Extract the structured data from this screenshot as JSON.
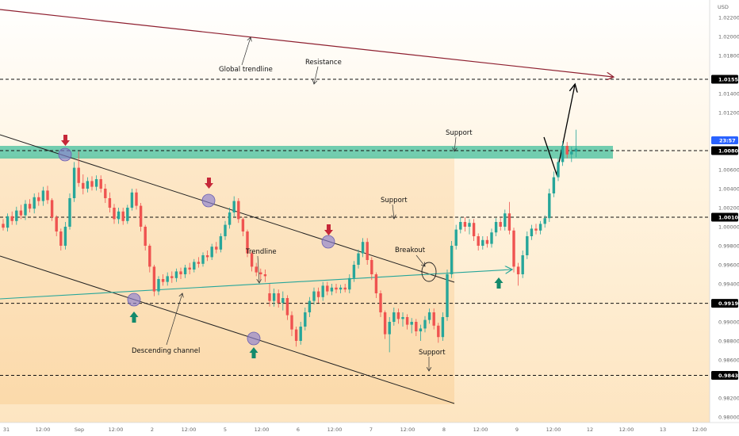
{
  "chart_data": {
    "type": "candlestick",
    "currency": "USD",
    "ylim": [
      0.979,
      1.025
    ],
    "y_ticks": [
      "1.02200",
      "1.02000",
      "1.01800",
      "1.01400",
      "1.01200",
      "1.00600",
      "1.00400",
      "1.00200",
      "1.00000",
      "0.99800",
      "0.99600",
      "0.99400",
      "0.99000",
      "0.98800",
      "0.98600",
      "0.98200",
      "0.98000"
    ],
    "x_ticks": [
      "31",
      "12:00",
      "Sep",
      "12:00",
      "2",
      "12:00",
      "5",
      "12:00",
      "6",
      "12:00",
      "7",
      "12:00",
      "8",
      "12:00",
      "9",
      "12:00",
      "12",
      "12:00",
      "13",
      "12:00"
    ],
    "levels": [
      {
        "id": "resistance",
        "value": 1.0155,
        "label": "1.01550",
        "color": "#000000"
      },
      {
        "id": "support-upper",
        "value": 1.008,
        "label": "1.00800",
        "color": "#000000"
      },
      {
        "id": "support-mid",
        "value": 1.001,
        "label": "1.00100",
        "color": "#000000"
      },
      {
        "id": "support-low",
        "value": 0.99195,
        "label": "0.99195",
        "color": "#000000"
      },
      {
        "id": "support-bottom",
        "value": 0.98438,
        "label": "0.98438",
        "color": "#000000"
      }
    ],
    "current_price": {
      "label": "23:57",
      "color": "#2962ff"
    },
    "zone": {
      "from": 1.0074,
      "to": 1.0087,
      "color": "#4fc3a1"
    },
    "annotations": [
      "Global trendline",
      "Resistance",
      "Support",
      "Support",
      "Trendline",
      "Breakout",
      "Descending channel",
      "Support"
    ],
    "candles": [
      [
        1.0003,
        1.0008,
        0.9996,
        0.9999
      ],
      [
        0.9999,
        1.0014,
        0.9995,
        1.0011
      ],
      [
        1.0011,
        1.0016,
        1.0002,
        1.0006
      ],
      [
        1.0006,
        1.0021,
        1.0002,
        1.0017
      ],
      [
        1.0017,
        1.0023,
        1.0008,
        1.0012
      ],
      [
        1.0012,
        1.0028,
        1.0007,
        1.0024
      ],
      [
        1.0024,
        1.0029,
        1.0015,
        1.0019
      ],
      [
        1.0019,
        1.0035,
        1.0014,
        1.0031
      ],
      [
        1.0031,
        1.0036,
        1.0022,
        1.0027
      ],
      [
        1.0027,
        1.0042,
        1.0022,
        1.0038
      ],
      [
        1.0038,
        1.0043,
        1.0024,
        1.0028
      ],
      [
        1.0028,
        1.003,
        1.0006,
        1.001
      ],
      [
        1.001,
        1.0012,
        0.999,
        0.9995
      ],
      [
        0.9995,
        0.9998,
        0.9975,
        0.998
      ],
      [
        0.998,
        1.0005,
        0.9976,
        1.0
      ],
      [
        1.0,
        1.0035,
        0.9997,
        1.003
      ],
      [
        1.003,
        1.0068,
        1.0026,
        1.0062
      ],
      [
        1.0062,
        1.0079,
        1.0042,
        1.0046
      ],
      [
        1.0046,
        1.0055,
        1.0034,
        1.004
      ],
      [
        1.004,
        1.0052,
        1.0036,
        1.0048
      ],
      [
        1.0048,
        1.0053,
        1.0038,
        1.0042
      ],
      [
        1.0042,
        1.0054,
        1.0038,
        1.005
      ],
      [
        1.005,
        1.0054,
        1.0036,
        1.004
      ],
      [
        1.004,
        1.0045,
        1.0025,
        1.003
      ],
      [
        1.003,
        1.0036,
        1.0015,
        1.002
      ],
      [
        1.002,
        1.0024,
        1.0003,
        1.0008
      ],
      [
        1.0008,
        1.002,
        1.0003,
        1.0016
      ],
      [
        1.0016,
        1.002,
        1.0002,
        1.0006
      ],
      [
        1.0006,
        1.0023,
        1.0003,
        1.002
      ],
      [
        1.002,
        1.004,
        1.0017,
        1.0036
      ],
      [
        1.0036,
        1.004,
        1.0018,
        1.0022
      ],
      [
        1.0022,
        1.0025,
        0.9995,
        1.0
      ],
      [
        1.0,
        1.0002,
        0.9975,
        0.998
      ],
      [
        0.998,
        0.9982,
        0.9952,
        0.9958
      ],
      [
        0.9958,
        0.996,
        0.9927,
        0.9932
      ],
      [
        0.9932,
        0.9948,
        0.9928,
        0.9945
      ],
      [
        0.9945,
        0.995,
        0.9938,
        0.9942
      ],
      [
        0.9942,
        0.9952,
        0.9938,
        0.9948
      ],
      [
        0.9948,
        0.9953,
        0.9941,
        0.9946
      ],
      [
        0.9946,
        0.9956,
        0.9942,
        0.9953
      ],
      [
        0.9953,
        0.9957,
        0.9945,
        0.995
      ],
      [
        0.995,
        0.996,
        0.9946,
        0.9957
      ],
      [
        0.9957,
        0.9962,
        0.995,
        0.9955
      ],
      [
        0.9955,
        0.9966,
        0.9952,
        0.9963
      ],
      [
        0.9963,
        0.9968,
        0.9957,
        0.9961
      ],
      [
        0.9961,
        0.9973,
        0.9958,
        0.997
      ],
      [
        0.997,
        0.9975,
        0.9964,
        0.9968
      ],
      [
        0.9968,
        0.9982,
        0.9965,
        0.9979
      ],
      [
        0.9979,
        0.9984,
        0.9972,
        0.9976
      ],
      [
        0.9976,
        0.9993,
        0.9973,
        0.999
      ],
      [
        0.999,
        1.0006,
        0.9986,
        1.0002
      ],
      [
        1.0002,
        1.002,
        0.9998,
        1.0015
      ],
      [
        1.0015,
        1.0032,
        1.001,
        1.0027
      ],
      [
        1.0027,
        1.003,
        1.0004,
        1.0008
      ],
      [
        1.0008,
        1.001,
        0.999,
        0.9995
      ],
      [
        0.9995,
        0.9997,
        0.9968,
        0.9972
      ],
      [
        0.9972,
        0.9974,
        0.9953,
        0.9958
      ],
      [
        0.9958,
        0.9962,
        0.9948,
        0.9952
      ],
      [
        0.9952,
        0.9956,
        0.9944,
        0.995
      ],
      [
        0.995,
        0.9955,
        0.9942,
        0.9948
      ],
      [
        0.993,
        0.994,
        0.9916,
        0.9922
      ],
      [
        0.9922,
        0.9935,
        0.9916,
        0.993
      ],
      [
        0.993,
        0.9934,
        0.9915,
        0.992
      ],
      [
        0.992,
        0.9932,
        0.9912,
        0.9925
      ],
      [
        0.9925,
        0.9928,
        0.9902,
        0.9907
      ],
      [
        0.9907,
        0.9911,
        0.9885,
        0.9892
      ],
      [
        0.9892,
        0.9895,
        0.9874,
        0.988
      ],
      [
        0.988,
        0.99,
        0.9876,
        0.9895
      ],
      [
        0.9895,
        0.9915,
        0.9891,
        0.991
      ],
      [
        0.991,
        0.9926,
        0.9905,
        0.9922
      ],
      [
        0.9922,
        0.9936,
        0.9918,
        0.9932
      ],
      [
        0.9932,
        0.9936,
        0.992,
        0.9926
      ],
      [
        0.9926,
        0.9942,
        0.9922,
        0.9938
      ],
      [
        0.9938,
        0.9942,
        0.9928,
        0.9932
      ],
      [
        0.9932,
        0.994,
        0.9928,
        0.9936
      ],
      [
        0.9936,
        0.994,
        0.993,
        0.9934
      ],
      [
        0.9934,
        0.9939,
        0.993,
        0.9936
      ],
      [
        0.9936,
        0.994,
        0.9931,
        0.9934
      ],
      [
        0.9934,
        0.995,
        0.993,
        0.9946
      ],
      [
        0.9946,
        0.9964,
        0.9942,
        0.996
      ],
      [
        0.996,
        0.9976,
        0.9956,
        0.9972
      ],
      [
        0.9972,
        0.9988,
        0.9968,
        0.9984
      ],
      [
        0.9984,
        0.9988,
        0.996,
        0.9965
      ],
      [
        0.9965,
        0.9968,
        0.9944,
        0.995
      ],
      [
        0.995,
        0.9952,
        0.9925,
        0.993
      ],
      [
        0.993,
        0.9933,
        0.9905,
        0.991
      ],
      [
        0.991,
        0.9912,
        0.9882,
        0.9887
      ],
      [
        0.9887,
        0.9905,
        0.9868,
        0.99
      ],
      [
        0.99,
        0.9915,
        0.9896,
        0.991
      ],
      [
        0.991,
        0.9914,
        0.9898,
        0.9903
      ],
      [
        0.9903,
        0.991,
        0.9895,
        0.9905
      ],
      [
        0.9905,
        0.9908,
        0.9892,
        0.9897
      ],
      [
        0.9897,
        0.9904,
        0.9888,
        0.99
      ],
      [
        0.99,
        0.9903,
        0.9885,
        0.989
      ],
      [
        0.989,
        0.9897,
        0.988,
        0.9893
      ],
      [
        0.9893,
        0.9906,
        0.9889,
        0.9902
      ],
      [
        0.9902,
        0.9914,
        0.9898,
        0.991
      ],
      [
        0.991,
        0.9914,
        0.9892,
        0.9896
      ],
      [
        0.9896,
        0.9899,
        0.9878,
        0.9884
      ],
      [
        0.9884,
        0.991,
        0.988,
        0.9905
      ],
      [
        0.9905,
        0.9955,
        0.9901,
        0.995
      ],
      [
        0.995,
        0.9985,
        0.9946,
        0.998
      ],
      [
        0.998,
        1.0002,
        0.9976,
        0.9997
      ],
      [
        0.9997,
        1.001,
        0.9993,
        1.0005
      ],
      [
        1.0005,
        1.001,
        0.9995,
        1.0
      ],
      [
        1.0,
        1.0008,
        0.9992,
        1.0004
      ],
      [
        1.0004,
        1.0008,
        0.9985,
        0.999
      ],
      [
        0.999,
        0.9993,
        0.9975,
        0.998
      ],
      [
        0.998,
        0.999,
        0.9976,
        0.9986
      ],
      [
        0.9986,
        0.999,
        0.9978,
        0.9982
      ],
      [
        0.9982,
        0.9998,
        0.9978,
        0.9994
      ],
      [
        0.9994,
        1.0009,
        0.999,
        1.0005
      ],
      [
        1.0005,
        1.0009,
        0.9996,
        1.0
      ],
      [
        1.0,
        1.0018,
        0.9996,
        1.0014
      ],
      [
        1.0014,
        1.0026,
        0.9992,
        0.9996
      ],
      [
        0.9996,
        0.9999,
        0.9952,
        0.9958
      ],
      [
        0.9958,
        0.9962,
        0.9938,
        0.995
      ],
      [
        0.995,
        0.9975,
        0.9946,
        0.997
      ],
      [
        0.997,
        0.9995,
        0.9966,
        0.999
      ],
      [
        0.999,
        1.0002,
        0.9986,
        0.9998
      ],
      [
        0.9998,
        1.0003,
        0.9992,
        0.9996
      ],
      [
        0.9996,
        1.0006,
        0.9992,
        1.0003
      ],
      [
        1.0003,
        1.0012,
        0.9999,
        1.0009
      ],
      [
        1.0009,
        1.004,
        1.0005,
        1.0035
      ],
      [
        1.0035,
        1.0058,
        1.0031,
        1.0052
      ],
      [
        1.0052,
        1.0072,
        1.0048,
        1.0068
      ],
      [
        1.0068,
        1.009,
        1.0064,
        1.0085
      ],
      [
        1.0085,
        1.0089,
        1.0072,
        1.0076
      ],
      [
        1.0076,
        1.0084,
        1.0068,
        1.0079
      ],
      [
        1.0079,
        1.0102,
        1.0073,
        1.0082
      ]
    ]
  }
}
